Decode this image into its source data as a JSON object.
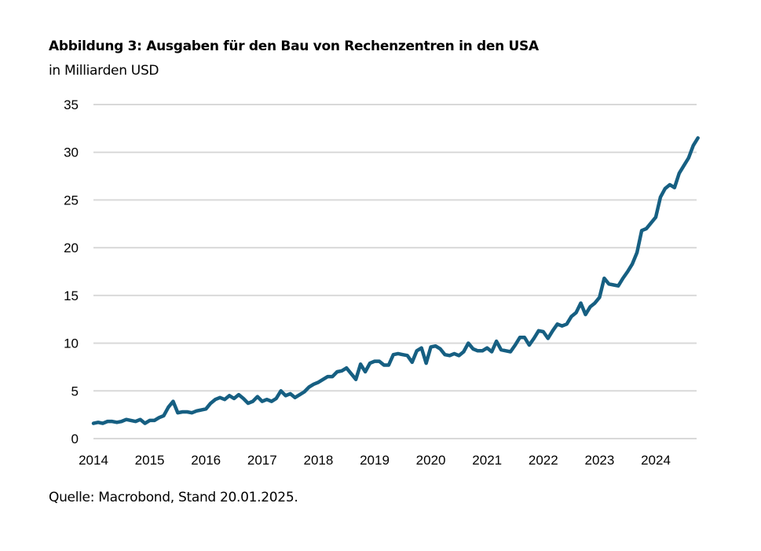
{
  "chart_data": {
    "type": "line",
    "title": "Abbildung 3: Ausgaben für den Bau von Rechenzentren in den USA",
    "subtitle": "in Milliarden USD",
    "source": "Quelle: Macrobond, Stand 20.01.2025.",
    "xlabel": "",
    "ylabel": "",
    "ylim": [
      0,
      35
    ],
    "yticks": [
      "0",
      "5",
      "10",
      "15",
      "20",
      "25",
      "30",
      "35"
    ],
    "xticks": [
      "2014",
      "2015",
      "2016",
      "2017",
      "2018",
      "2019",
      "2020",
      "2021",
      "2022",
      "2023",
      "2024"
    ],
    "grid": "horizontal",
    "line_color": "#165f82",
    "start": "2014-01",
    "values": [
      1.6,
      1.7,
      1.6,
      1.8,
      1.8,
      1.7,
      1.8,
      2.0,
      1.9,
      1.8,
      2.0,
      1.6,
      1.9,
      1.9,
      2.2,
      2.4,
      3.3,
      3.9,
      2.7,
      2.8,
      2.8,
      2.7,
      2.9,
      3.0,
      3.1,
      3.7,
      4.1,
      4.3,
      4.1,
      4.5,
      4.2,
      4.6,
      4.2,
      3.7,
      3.9,
      4.4,
      3.9,
      4.1,
      3.9,
      4.2,
      5.0,
      4.5,
      4.7,
      4.3,
      4.6,
      4.9,
      5.4,
      5.7,
      5.9,
      6.2,
      6.5,
      6.5,
      7.0,
      7.1,
      7.4,
      6.8,
      6.2,
      7.8,
      7.0,
      7.9,
      8.1,
      8.1,
      7.7,
      7.7,
      8.8,
      8.9,
      8.8,
      8.7,
      8.0,
      9.2,
      9.5,
      7.9,
      9.6,
      9.7,
      9.4,
      8.8,
      8.7,
      8.9,
      8.7,
      9.1,
      10.0,
      9.4,
      9.2,
      9.2,
      9.5,
      9.1,
      10.2,
      9.3,
      9.2,
      9.1,
      9.8,
      10.6,
      10.6,
      9.8,
      10.5,
      11.3,
      11.2,
      10.5,
      11.3,
      12.0,
      11.8,
      12.0,
      12.8,
      13.2,
      14.2,
      13.0,
      13.8,
      14.2,
      14.8,
      16.8,
      16.2,
      16.1,
      16.0,
      16.8,
      17.5,
      18.3,
      19.5,
      21.8,
      22.0,
      22.6,
      23.2,
      25.3,
      26.2,
      26.6,
      26.3,
      27.8,
      28.6,
      29.4,
      30.7,
      31.5
    ]
  }
}
